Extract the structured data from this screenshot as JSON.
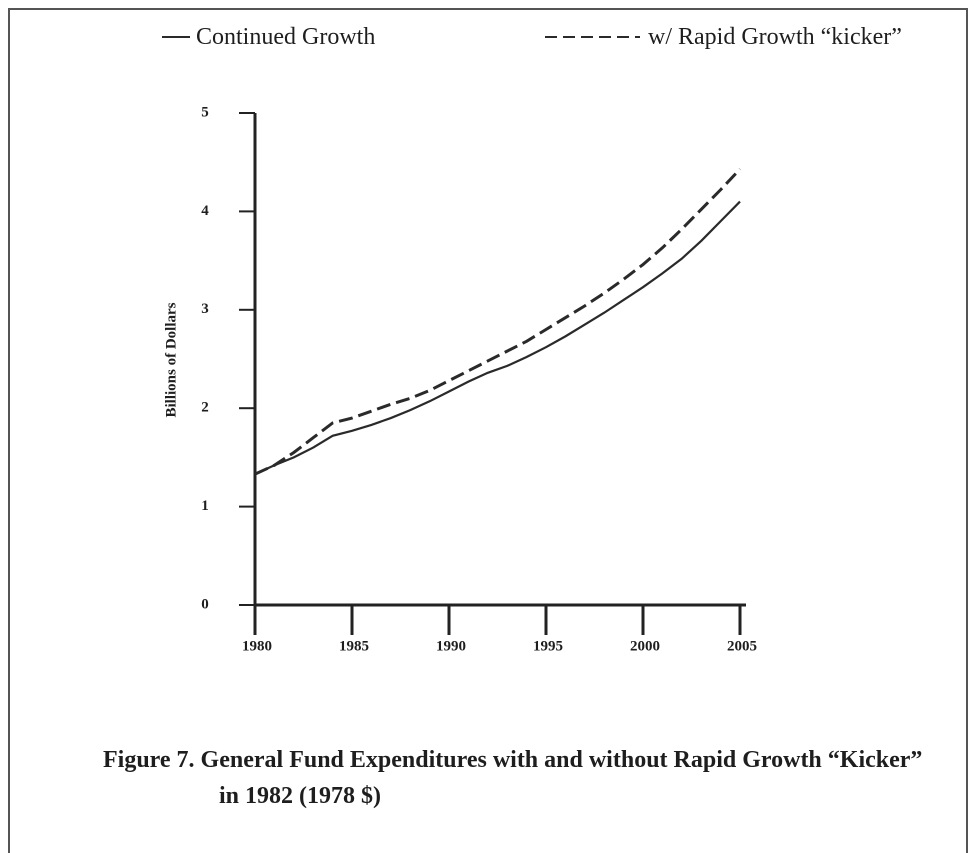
{
  "chart_data": {
    "type": "line",
    "title": "Figure 7. General Fund Expenditures with and without Rapid Growth “Kicker” in 1982 (1978 $)",
    "y_label": "Billions of Dollars",
    "x": [
      1980,
      1981,
      1982,
      1983,
      1984,
      1985,
      1986,
      1987,
      1988,
      1989,
      1990,
      1991,
      1992,
      1993,
      1994,
      1995,
      1996,
      1997,
      1998,
      1999,
      2000,
      2001,
      2002,
      2003,
      2004,
      2005
    ],
    "series": [
      {
        "name": "Continued Growth",
        "color": "#2a2a2a",
        "style": "solid",
        "values": [
          1.33,
          1.42,
          1.5,
          1.6,
          1.72,
          1.77,
          1.83,
          1.9,
          1.98,
          2.07,
          2.17,
          2.27,
          2.36,
          2.43,
          2.52,
          2.62,
          2.73,
          2.85,
          2.97,
          3.1,
          3.23,
          3.37,
          3.52,
          3.7,
          3.9,
          4.1
        ]
      },
      {
        "name": "w/ Rapid Growth “kicker”",
        "color": "#2a2a2a",
        "style": "dashed",
        "values": [
          1.33,
          1.42,
          1.55,
          1.7,
          1.85,
          1.9,
          1.97,
          2.04,
          2.1,
          2.18,
          2.28,
          2.38,
          2.48,
          2.58,
          2.68,
          2.8,
          2.92,
          3.04,
          3.17,
          3.31,
          3.46,
          3.63,
          3.82,
          4.02,
          4.22,
          4.43
        ]
      }
    ],
    "xlim": [
      1980,
      2005
    ],
    "xticks": [
      1980,
      1985,
      1990,
      1995,
      2000,
      2005
    ],
    "ylim": [
      0,
      5
    ],
    "yticks": [
      0,
      1,
      2,
      3,
      4,
      5
    ],
    "grid": false
  }
}
